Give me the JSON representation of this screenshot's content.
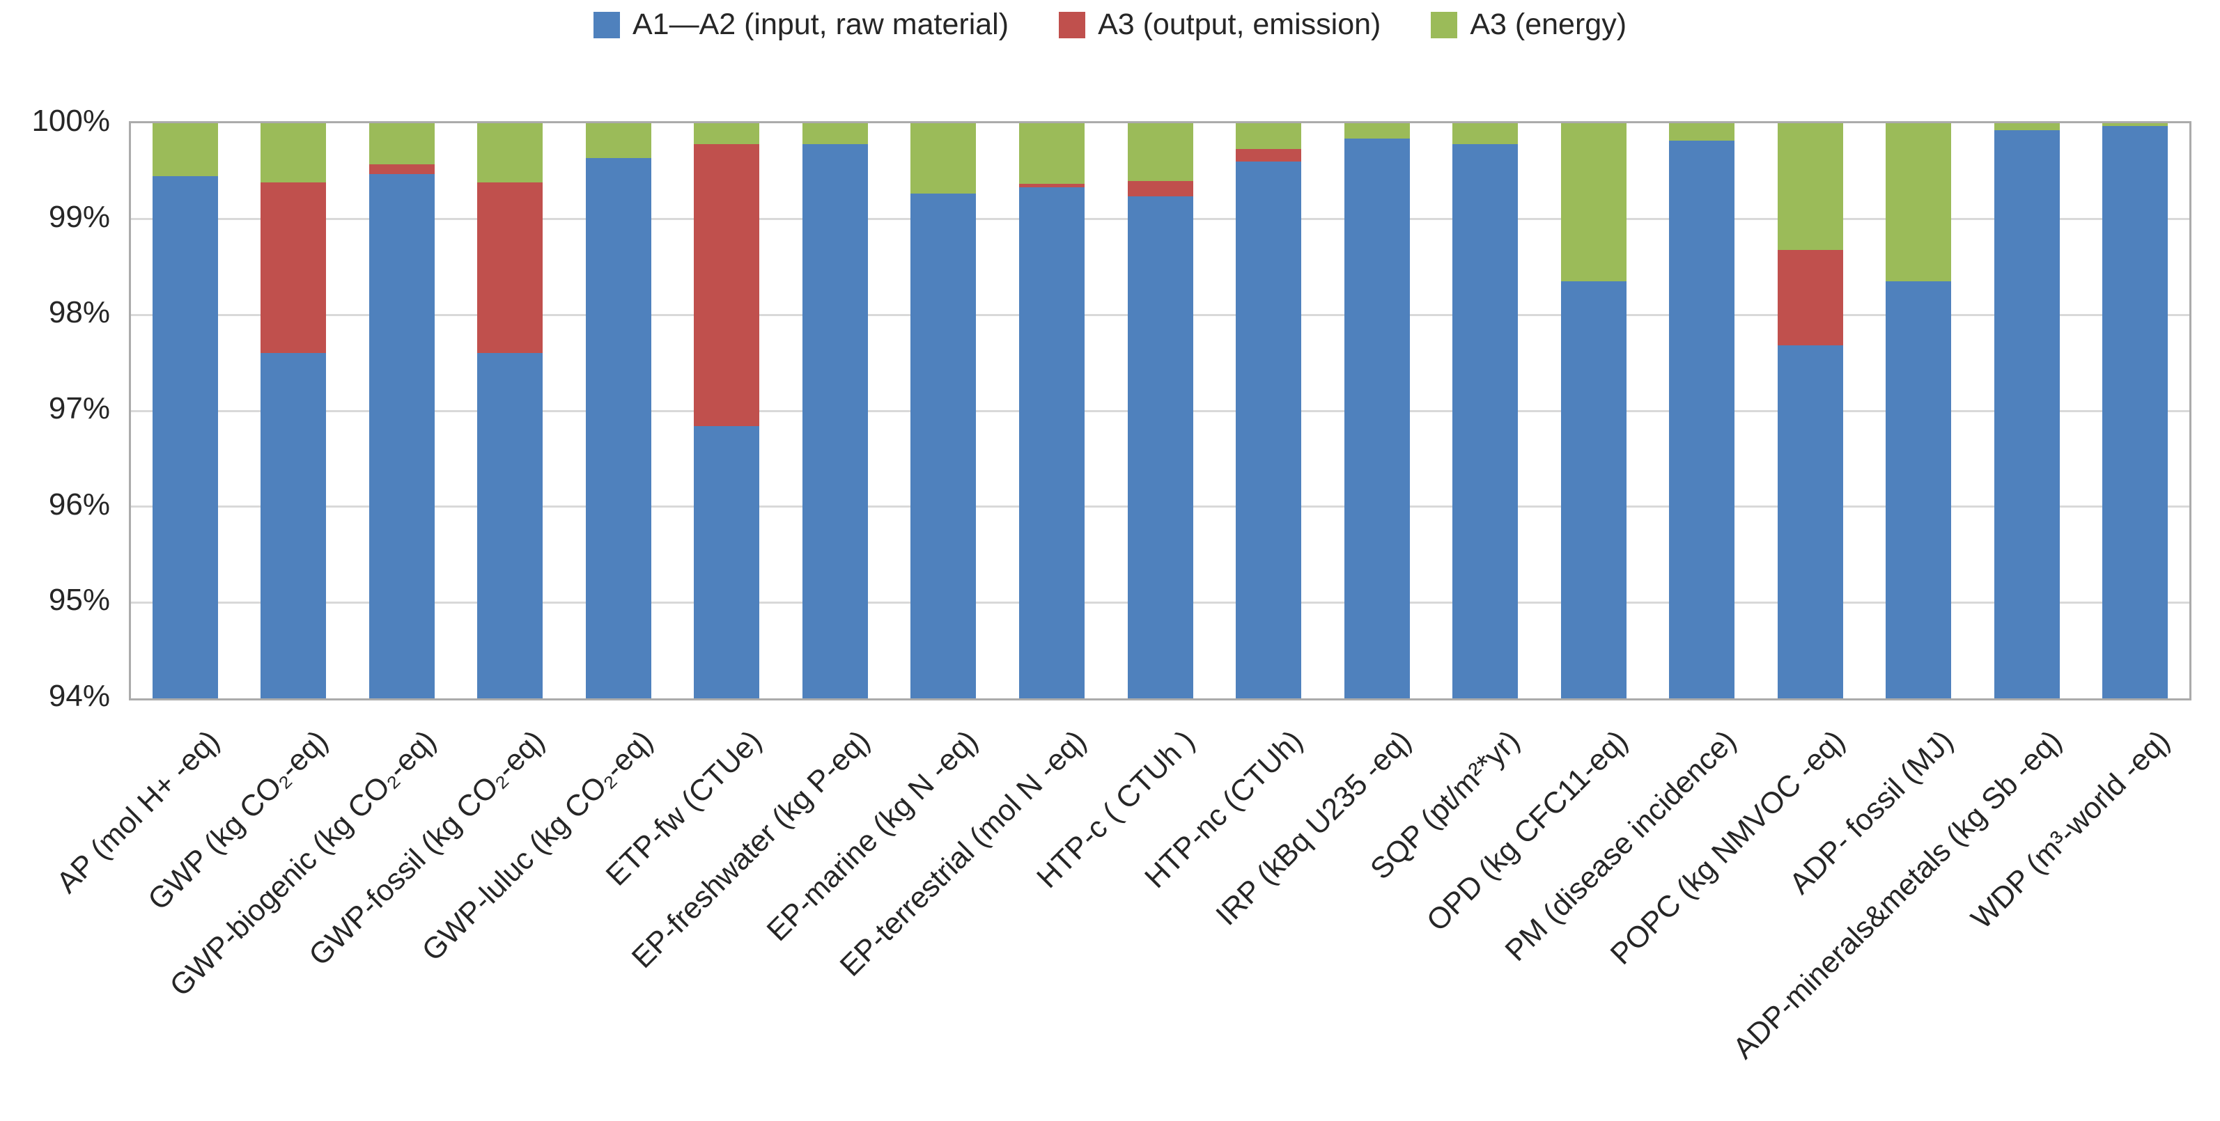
{
  "legend": {
    "items": [
      {
        "label": "A1—A2 (input, raw material)",
        "color": "#4F81BD"
      },
      {
        "label": "A3 (output, emission)",
        "color": "#C0504D"
      },
      {
        "label": "A3 (energy)",
        "color": "#9BBB59"
      }
    ]
  },
  "chart_data": {
    "type": "bar",
    "stacked": true,
    "units": "%",
    "ylim": [
      94,
      100
    ],
    "grid": true,
    "legend_position": "top",
    "y_ticks": [
      "100%",
      "99%",
      "98%",
      "97%",
      "96%",
      "95%",
      "94%"
    ],
    "categories": [
      "AP (mol H+ -eq)",
      "GWP (kg CO₂-eq)",
      "GWP-biogenic (kg CO₂-eq)",
      "GWP-fossil (kg CO₂-eq)",
      "GWP-luluc (kg CO₂-eq)",
      "ETP-fw (CTUe)",
      "EP-freshwater (kg P-eq)",
      "EP-marine (kg N -eq)",
      "EP-terrestrial (mol N -eq)",
      "HTP-c ( CTUh )",
      "HTP-nc (CTUh)",
      "IRP (kBq U235 -eq)",
      "SQP (pt/m²*yr)",
      "OPD (kg CFC11-eq)",
      "PM (disease incidence)",
      "POPC (kg NMVOC -eq)",
      "ADP- fossil (MJ)",
      "ADP-minerals&metals (kg Sb -eq)",
      "WDP (m³-world -eq)"
    ],
    "series": [
      {
        "name": "A1—A2 (input, raw material)",
        "color": "#4F81BD",
        "values": [
          99.45,
          97.6,
          99.47,
          97.6,
          99.64,
          96.84,
          99.78,
          99.27,
          99.33,
          99.24,
          99.6,
          99.84,
          99.78,
          98.35,
          99.82,
          97.68,
          98.35,
          99.93,
          99.97
        ]
      },
      {
        "name": "A3 (output, emission)",
        "color": "#C0504D",
        "values": [
          0,
          1.78,
          0.1,
          1.78,
          0,
          2.94,
          0,
          0,
          0.04,
          0.16,
          0.13,
          0,
          0,
          0,
          0,
          1.0,
          0,
          0,
          0
        ]
      },
      {
        "name": "A3 (energy)",
        "color": "#9BBB59",
        "values": [
          0.55,
          0.62,
          0.43,
          0.62,
          0.36,
          0.22,
          0.22,
          0.73,
          0.63,
          0.6,
          0.27,
          0.16,
          0.22,
          1.65,
          0.18,
          1.32,
          1.65,
          0.07,
          0.03
        ]
      }
    ],
    "colors": {
      "gridline": "#D9D9D9",
      "plot_border": "#ABABAB",
      "text": "#262626",
      "background": "#FFFFFF"
    }
  }
}
